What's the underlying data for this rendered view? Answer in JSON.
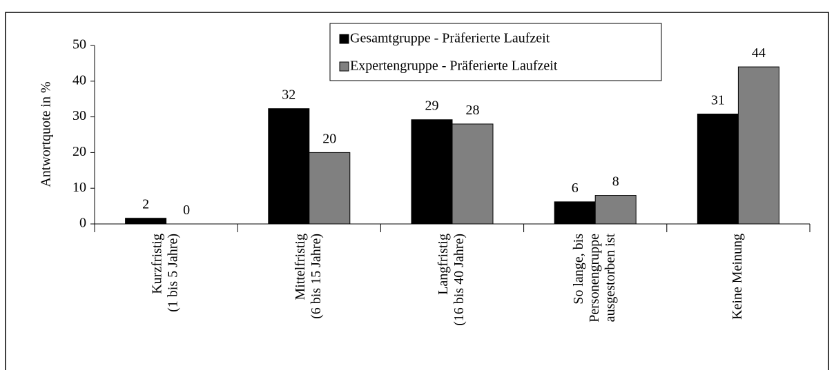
{
  "chart_data": {
    "type": "bar",
    "y_label": "Antwortquote in %",
    "categories": [
      [
        "Kurzfristig",
        "(1 bis 5 Jahre)"
      ],
      [
        "Mittelfristig",
        "(6 bis 15 Jahre)"
      ],
      [
        "Langfristig",
        "(16 bis 40 Jahre)"
      ],
      [
        "So lange, bis",
        "Personengruppe",
        "ausgestorben ist"
      ],
      [
        "Keine Meinung"
      ]
    ],
    "series": [
      {
        "name": "Gesamtgruppe - Präferierte Laufzeit",
        "color": "#000000",
        "values": [
          1.6,
          32.3,
          29.2,
          6.2,
          30.8
        ],
        "value_labels": [
          "2",
          "32",
          "29",
          "6",
          "31"
        ]
      },
      {
        "name": "Expertengruppe - Präferierte Laufzeit",
        "color": "#808080",
        "values": [
          0,
          20,
          28,
          8,
          44
        ]
      }
    ],
    "ylim": [
      0,
      50
    ],
    "yticks": [
      0,
      10,
      20,
      30,
      40,
      50
    ]
  }
}
